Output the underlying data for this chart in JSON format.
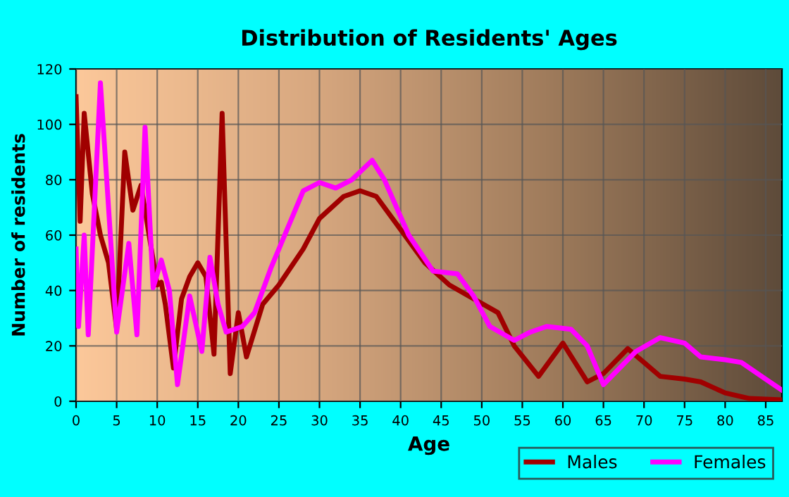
{
  "chart_data": {
    "type": "line",
    "title": "Distribution of Residents' Ages",
    "xlabel": "Age",
    "ylabel": "Number of residents",
    "xlim": [
      0,
      87
    ],
    "xticks": [
      0,
      5,
      10,
      15,
      20,
      25,
      30,
      35,
      40,
      45,
      50,
      55,
      60,
      65,
      70,
      75,
      80,
      85
    ],
    "ylim": [
      0,
      120
    ],
    "yticks": [
      0,
      20,
      40,
      60,
      80,
      100,
      120
    ],
    "grid": true,
    "legend": "bottom right",
    "marker": "none",
    "line_style": "solid",
    "series": [
      {
        "name": "Males",
        "color": "#a00000",
        "x": [
          0,
          0.5,
          1,
          2,
          3,
          4,
          5,
          6,
          7,
          8,
          9,
          10,
          10.5,
          11,
          12,
          13,
          14,
          15,
          16,
          17,
          18,
          19,
          20,
          21,
          23,
          25,
          28,
          30,
          33,
          35,
          37,
          40,
          43,
          46,
          49,
          52,
          54,
          57,
          60,
          63,
          65,
          68,
          70,
          72,
          75,
          77,
          80,
          83,
          87
        ],
        "values": [
          110,
          65,
          104,
          75,
          60,
          50,
          26,
          90,
          69,
          78,
          60,
          42,
          43,
          35,
          12,
          37,
          45,
          50,
          45,
          17,
          104,
          10,
          32,
          16,
          35,
          42,
          55,
          66,
          74,
          76,
          74,
          62,
          50,
          42,
          37,
          32,
          20,
          9,
          21,
          7,
          10,
          19,
          14,
          9,
          8,
          7,
          3,
          1,
          0.5
        ]
      },
      {
        "name": "Females",
        "color": "#ff00ff",
        "x": [
          0,
          0.3,
          1,
          1.5,
          3,
          5,
          6.5,
          7.5,
          8.5,
          9.5,
          10.5,
          11.5,
          12.5,
          14,
          15.5,
          16.5,
          17.5,
          18.5,
          20.5,
          22,
          24,
          26,
          28,
          30,
          32,
          34,
          36.5,
          38,
          41,
          44,
          47,
          49,
          51,
          54,
          56,
          58,
          61,
          63,
          65,
          67,
          69,
          72,
          75,
          77,
          80,
          82,
          85,
          87
        ],
        "values": [
          55,
          27,
          60,
          24,
          115,
          25,
          57,
          24,
          99,
          41,
          51,
          40,
          6,
          38,
          18,
          52,
          35,
          25,
          27,
          32,
          48,
          62,
          76,
          79,
          77,
          80,
          87,
          80,
          60,
          47,
          46,
          38,
          27,
          22,
          25,
          27,
          26,
          20,
          6,
          12,
          18,
          23,
          21,
          16,
          15,
          14,
          8,
          4
        ]
      }
    ]
  }
}
